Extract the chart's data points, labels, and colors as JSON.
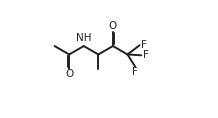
{
  "bg_color": "#ffffff",
  "line_color": "#222222",
  "lw": 1.4,
  "fs": 7.5,
  "xlim": [
    -0.05,
    1.05
  ],
  "ylim": [
    0.05,
    0.95
  ]
}
